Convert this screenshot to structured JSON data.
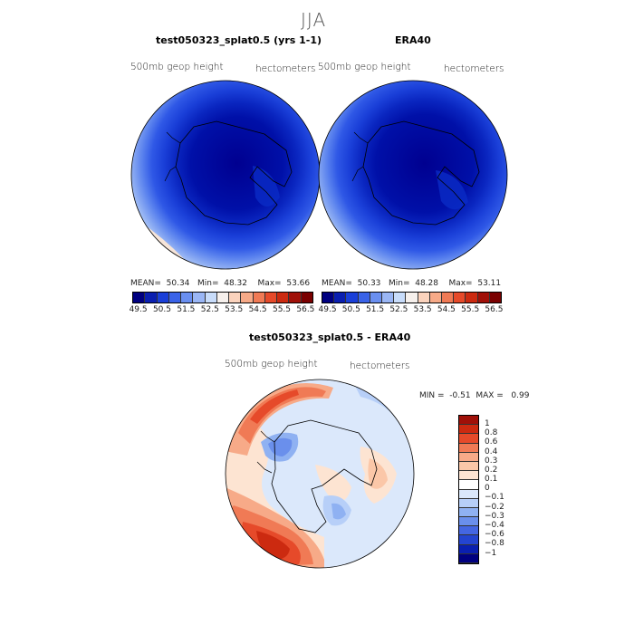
{
  "season": "JJA",
  "left_panel": {
    "title": "test050323_splat0.5 (yrs 1-1)",
    "variable": "500mb geop height",
    "units": "hectometers",
    "stats": {
      "mean_label": "MEAN=",
      "mean": "50.34",
      "min_label": "Min=",
      "min": "48.32",
      "max_label": "Max=",
      "max": "53.66"
    }
  },
  "right_panel": {
    "title": "ERA40",
    "variable": "500mb geop height",
    "units": "hectometers",
    "stats": {
      "mean_label": "MEAN=",
      "mean": "50.33",
      "min_label": "Min=",
      "min": "48.28",
      "max_label": "Max=",
      "max": "53.11"
    }
  },
  "field_colorbar": {
    "ticks": [
      "49.5",
      "50.5",
      "51.5",
      "52.5",
      "53.5",
      "54.5",
      "55.5",
      "56.5"
    ],
    "colors": [
      "#000080",
      "#0a1fb0",
      "#1a3fd8",
      "#3a63e8",
      "#6a8ff0",
      "#9ab6f5",
      "#c8dcfa",
      "#f6f0ec",
      "#fbd3bd",
      "#f7aa88",
      "#f07a55",
      "#e64a2a",
      "#cc2a10",
      "#a01008",
      "#7a0000"
    ]
  },
  "diff_panel": {
    "title": "test050323_splat0.5 - ERA40",
    "variable": "500mb geop height",
    "units": "hectometers",
    "min_label": "MIN =",
    "min": "-0.51",
    "max_label": "MAX =",
    "max": "0.99"
  },
  "diff_colorbar": {
    "ticks": [
      "1",
      "0.8",
      "0.6",
      "0.4",
      "0.3",
      "0.2",
      "0.1",
      "0",
      "−0.1",
      "−0.2",
      "−0.3",
      "−0.4",
      "−0.6",
      "−0.8",
      "−1"
    ],
    "colors": [
      "#a01008",
      "#cc2a10",
      "#e64a2a",
      "#f07a55",
      "#f7aa88",
      "#fbc7a8",
      "#fde4d2",
      "#ffffff",
      "#dbe8fb",
      "#b7cff8",
      "#8fb1f2",
      "#6a8fec",
      "#4466e2",
      "#2444d0",
      "#0a1fb0",
      "#000080"
    ]
  }
}
